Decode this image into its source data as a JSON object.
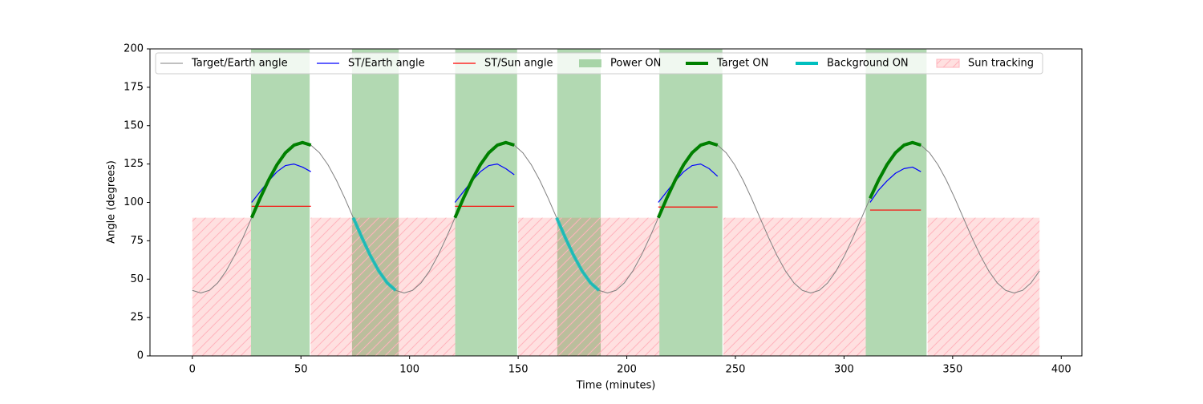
{
  "chart_data": {
    "type": "line",
    "xlabel": "Time (minutes)",
    "ylabel": "Angle (degrees)",
    "xlim": [
      -19.5,
      409.5
    ],
    "ylim": [
      0,
      200
    ],
    "xticks": [
      0,
      50,
      100,
      150,
      200,
      250,
      300,
      350,
      400
    ],
    "yticks": [
      0,
      25,
      50,
      75,
      100,
      125,
      150,
      175,
      200
    ],
    "legend": "upper center",
    "x": [
      0,
      3.9,
      7.8,
      11.7,
      15.6,
      19.5,
      23.4,
      27.3,
      31.2,
      35.1,
      39,
      42.9,
      46.8,
      50.7,
      54.6,
      58.5,
      62.4,
      66.3,
      70.2,
      74.1,
      78,
      81.9,
      85.8,
      89.7,
      93.6,
      97.5,
      101.4,
      105.3,
      109.2,
      113.1,
      117,
      120.9,
      124.8,
      128.7,
      132.6,
      136.5,
      140.4,
      144.3,
      148.2,
      152.1,
      156,
      159.9,
      163.8,
      167.7,
      171.6,
      175.5,
      179.4,
      183.3,
      187.2,
      191.1,
      195,
      198.9,
      202.8,
      206.7,
      210.6,
      214.5,
      218.4,
      222.3,
      226.2,
      230.1,
      234,
      237.9,
      241.8,
      245.7,
      249.6,
      253.5,
      257.4,
      261.3,
      265.2,
      269.1,
      273,
      276.9,
      280.8,
      284.7,
      288.6,
      292.5,
      296.4,
      300.3,
      304.2,
      308.1,
      312,
      315.9,
      319.8,
      323.7,
      327.6,
      331.5,
      335.4,
      339.3,
      343.2,
      347.1,
      351,
      354.9,
      358.8,
      362.7,
      366.6,
      370.5,
      374.4,
      378.3,
      382.2,
      386.1,
      390
    ],
    "series": [
      {
        "name": "Target/Earth angle",
        "kind": "line",
        "color": "#808080",
        "width": 1,
        "values": [
          42.7,
          41,
          42.7,
          47.6,
          55.4,
          65.5,
          77.3,
          90,
          102.7,
          114.5,
          124.6,
          132.4,
          137.3,
          139,
          137.3,
          132.4,
          124.6,
          114.5,
          102.7,
          90,
          77.3,
          65.5,
          55.4,
          47.6,
          42.7,
          41,
          42.7,
          47.6,
          55.4,
          65.5,
          77.3,
          90,
          102.7,
          114.5,
          124.6,
          132.4,
          137.3,
          139,
          137.3,
          132.4,
          124.6,
          114.5,
          102.7,
          90,
          77.3,
          65.5,
          55.4,
          47.6,
          42.7,
          41,
          42.7,
          47.6,
          55.4,
          65.5,
          77.3,
          90,
          102.7,
          114.5,
          124.6,
          132.4,
          137.3,
          139,
          137.3,
          132.4,
          124.6,
          114.5,
          102.7,
          90,
          77.3,
          65.5,
          55.4,
          47.6,
          42.7,
          41,
          42.7,
          47.6,
          55.4,
          65.5,
          77.3,
          90,
          102.7,
          114.5,
          124.6,
          132.4,
          137.3,
          139,
          137.3,
          132.4,
          124.6,
          114.5,
          102.7,
          90,
          77.3,
          65.5,
          55.4,
          47.6,
          42.7,
          41,
          42.7,
          47.6,
          55.4
        ]
      },
      {
        "name": "ST/Earth angle",
        "kind": "line",
        "color": "#0000ff",
        "width": 1.2,
        "values": [
          null,
          null,
          null,
          null,
          null,
          null,
          null,
          100,
          107,
          114,
          120,
          124,
          125,
          123,
          120,
          null,
          null,
          null,
          null,
          null,
          null,
          null,
          null,
          null,
          null,
          null,
          null,
          null,
          null,
          null,
          null,
          100,
          107,
          114,
          120,
          124,
          125,
          122,
          118,
          null,
          null,
          null,
          null,
          null,
          null,
          null,
          null,
          null,
          null,
          null,
          null,
          null,
          null,
          null,
          null,
          100,
          107,
          114,
          120,
          124,
          125,
          122,
          117,
          null,
          null,
          null,
          null,
          null,
          null,
          null,
          null,
          null,
          null,
          null,
          null,
          null,
          null,
          null,
          null,
          null,
          100,
          108,
          114,
          119,
          122,
          123,
          120,
          null,
          null,
          null,
          null,
          null,
          null,
          null,
          null,
          null,
          null,
          null,
          null,
          null,
          null
        ]
      },
      {
        "name": "ST/Sun angle",
        "kind": "line",
        "color": "#ff0000",
        "width": 1.2,
        "values": [
          null,
          null,
          null,
          null,
          null,
          null,
          null,
          97.5,
          97.5,
          97.5,
          97.5,
          97.5,
          97.5,
          97.5,
          97.5,
          null,
          null,
          null,
          null,
          null,
          null,
          null,
          null,
          null,
          null,
          null,
          null,
          null,
          null,
          null,
          null,
          97.5,
          97.5,
          97.5,
          97.5,
          97.5,
          97.5,
          97.5,
          97.5,
          null,
          null,
          null,
          null,
          null,
          null,
          null,
          null,
          null,
          null,
          null,
          null,
          null,
          null,
          null,
          null,
          97,
          97,
          97,
          97,
          97,
          97,
          97,
          97,
          null,
          null,
          null,
          null,
          null,
          null,
          null,
          null,
          null,
          null,
          null,
          null,
          null,
          null,
          null,
          null,
          null,
          95,
          95,
          95,
          95,
          95,
          95,
          95,
          null,
          null,
          null,
          null,
          null,
          null,
          null,
          null,
          null,
          null,
          null,
          null,
          null,
          null
        ]
      },
      {
        "name": "Power ON",
        "kind": "span",
        "color": "#008000",
        "intervals": [
          [
            27,
            54
          ],
          [
            73.5,
            95
          ],
          [
            121,
            149.5
          ],
          [
            168,
            188
          ],
          [
            215,
            244
          ],
          [
            310,
            338
          ]
        ]
      },
      {
        "name": "Target ON",
        "kind": "line",
        "color": "#008000",
        "width": 4,
        "values": [
          null,
          null,
          null,
          null,
          null,
          null,
          null,
          90,
          102.7,
          114.5,
          124.6,
          132.4,
          137.3,
          139,
          137.3,
          null,
          null,
          null,
          null,
          null,
          null,
          null,
          null,
          null,
          null,
          null,
          null,
          null,
          null,
          null,
          null,
          90,
          102.7,
          114.5,
          124.6,
          132.4,
          137.3,
          139,
          137.3,
          null,
          null,
          null,
          null,
          null,
          null,
          null,
          null,
          null,
          null,
          null,
          null,
          null,
          null,
          null,
          null,
          90,
          102.7,
          114.5,
          124.6,
          132.4,
          137.3,
          139,
          137.3,
          null,
          null,
          null,
          null,
          null,
          null,
          null,
          null,
          null,
          null,
          null,
          null,
          null,
          null,
          null,
          null,
          null,
          102.7,
          114.5,
          124.6,
          132.4,
          137.3,
          139,
          137.3,
          null,
          null,
          null,
          null,
          null,
          null,
          null,
          null,
          null,
          null,
          null,
          null,
          null,
          null
        ]
      },
      {
        "name": "Background ON",
        "kind": "line",
        "color": "#00bfbf",
        "width": 4,
        "values": [
          null,
          null,
          null,
          null,
          null,
          null,
          null,
          null,
          null,
          null,
          null,
          null,
          null,
          null,
          null,
          null,
          null,
          null,
          null,
          90,
          77.3,
          65.5,
          55.4,
          47.6,
          42.7,
          null,
          null,
          null,
          null,
          null,
          null,
          null,
          null,
          null,
          null,
          null,
          null,
          null,
          null,
          null,
          null,
          null,
          null,
          90,
          77.3,
          65.5,
          55.4,
          47.6,
          42.7,
          null,
          null,
          null,
          null,
          null,
          null,
          null,
          null,
          null,
          null,
          null,
          null,
          null,
          null,
          null,
          null,
          null,
          null,
          null,
          null,
          null,
          null,
          null,
          null,
          null,
          null,
          null,
          null,
          null,
          null,
          null,
          null,
          null,
          null,
          null,
          null,
          null,
          null,
          null,
          null,
          null,
          null,
          null,
          null,
          null,
          null,
          null,
          null,
          null,
          null,
          null,
          null
        ]
      },
      {
        "name": "Sun tracking",
        "kind": "span",
        "color": "#ff0000",
        "hatch": true,
        "top": 90,
        "intervals": [
          [
            0,
            27
          ],
          [
            54.5,
            121
          ],
          [
            150,
            215
          ],
          [
            244.5,
            310
          ],
          [
            338.5,
            390
          ]
        ]
      }
    ]
  }
}
